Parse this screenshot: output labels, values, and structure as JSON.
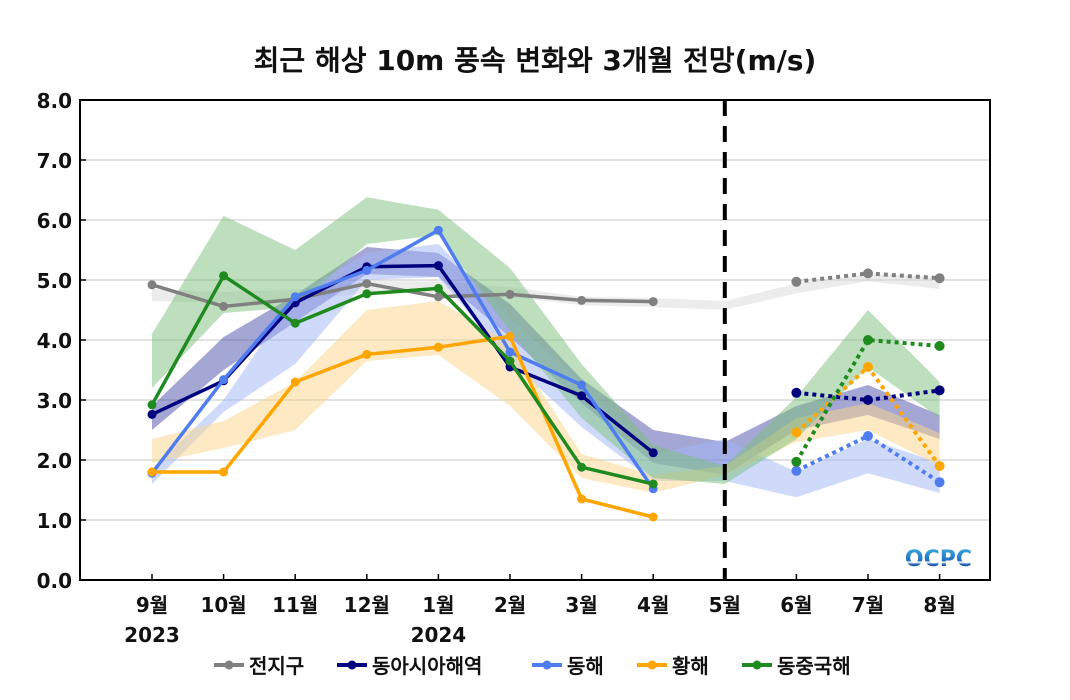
{
  "chart_data": {
    "type": "line",
    "title": "최근 해상 10m 풍속 변화와 3개월 전망(m/s)",
    "xlabel": "",
    "ylabel": "",
    "ylim": [
      0,
      8
    ],
    "yticks": [
      "0.0",
      "1.0",
      "2.0",
      "3.0",
      "4.0",
      "5.0",
      "6.0",
      "7.0",
      "8.0"
    ],
    "grid": true,
    "categories": [
      "9월",
      "10월",
      "11월",
      "12월",
      "1월",
      "2월",
      "3월",
      "4월",
      "5월",
      "6월",
      "7월",
      "8월"
    ],
    "year_labels": [
      {
        "category": "9월",
        "label": "2023"
      },
      {
        "category": "1월",
        "label": "2024"
      }
    ],
    "divider_after_category": "5월",
    "legend_position": "bottom",
    "series": [
      {
        "name": "전지구",
        "color": "#808080",
        "band_color": "#d9d9d9",
        "observed": [
          4.92,
          4.56,
          4.68,
          4.94,
          4.72,
          4.76,
          4.66,
          4.64,
          null,
          null,
          null,
          null
        ],
        "forecast": [
          null,
          null,
          null,
          null,
          null,
          null,
          null,
          null,
          null,
          4.97,
          5.11,
          5.03
        ],
        "band_lower": [
          4.65,
          4.62,
          4.66,
          4.78,
          4.78,
          4.72,
          4.58,
          4.55,
          4.5,
          4.78,
          4.98,
          4.85
        ],
        "band_upper": [
          4.85,
          4.8,
          4.84,
          4.98,
          4.98,
          4.88,
          4.72,
          4.7,
          4.65,
          4.94,
          5.1,
          5.05
        ]
      },
      {
        "name": "동아시아해역",
        "color": "#00007f",
        "band_color": "#4a4fa8",
        "observed": [
          2.76,
          3.32,
          4.62,
          5.22,
          5.24,
          3.55,
          3.07,
          2.12,
          null,
          null,
          null,
          null
        ],
        "forecast": [
          null,
          null,
          null,
          null,
          null,
          null,
          null,
          null,
          null,
          3.12,
          3.0,
          3.16
        ],
        "band_lower": [
          2.5,
          3.5,
          4.3,
          5.1,
          5.05,
          4.05,
          2.95,
          1.95,
          1.75,
          2.5,
          2.75,
          2.35
        ],
        "band_upper": [
          2.9,
          4.05,
          4.75,
          5.55,
          5.45,
          4.6,
          3.35,
          2.5,
          2.3,
          2.9,
          3.25,
          2.75
        ]
      },
      {
        "name": "동해",
        "color": "#4f7df0",
        "band_color": "#9fb6f7",
        "observed": [
          1.78,
          3.34,
          4.72,
          5.16,
          5.83,
          3.8,
          3.25,
          1.52,
          null,
          null,
          null,
          null
        ],
        "forecast": [
          null,
          null,
          null,
          null,
          null,
          null,
          null,
          null,
          null,
          1.82,
          2.4,
          1.63
        ],
        "band_lower": [
          1.6,
          2.8,
          3.6,
          5.0,
          5.05,
          3.65,
          2.55,
          1.65,
          1.65,
          1.38,
          1.78,
          1.45
        ],
        "band_upper": [
          1.85,
          3.0,
          4.75,
          5.45,
          5.6,
          4.35,
          3.3,
          2.1,
          2.35,
          1.8,
          2.35,
          1.95
        ]
      },
      {
        "name": "황해",
        "color": "#ffa500",
        "band_color": "#fbd68c",
        "observed": [
          1.8,
          1.8,
          3.3,
          3.76,
          3.88,
          4.06,
          1.35,
          1.05,
          null,
          null,
          null,
          null
        ],
        "forecast": [
          null,
          null,
          null,
          null,
          null,
          null,
          null,
          null,
          null,
          2.46,
          3.55,
          1.9
        ],
        "band_lower": [
          1.95,
          2.2,
          2.5,
          3.65,
          3.75,
          2.9,
          1.7,
          1.45,
          1.75,
          2.3,
          2.5,
          1.9
        ],
        "band_upper": [
          2.35,
          2.65,
          3.3,
          4.5,
          4.65,
          3.95,
          2.1,
          1.75,
          1.9,
          2.7,
          2.95,
          2.45
        ]
      },
      {
        "name": "동중국해",
        "color": "#1f8a1f",
        "band_color": "#7cbf7c",
        "observed": [
          2.92,
          5.07,
          4.28,
          4.77,
          4.86,
          3.65,
          1.88,
          1.6,
          null,
          null,
          null,
          null
        ],
        "forecast": [
          null,
          null,
          null,
          null,
          null,
          null,
          null,
          null,
          null,
          1.97,
          4.0,
          3.9
        ],
        "band_lower": [
          3.2,
          4.45,
          4.55,
          5.6,
          5.75,
          4.15,
          2.7,
          1.7,
          1.6,
          2.35,
          3.55,
          2.7
        ],
        "band_upper": [
          4.1,
          6.07,
          5.5,
          6.38,
          6.17,
          5.2,
          3.6,
          2.25,
          1.9,
          3.05,
          4.5,
          3.3
        ]
      }
    ]
  },
  "logo": {
    "text": "OCPC"
  }
}
